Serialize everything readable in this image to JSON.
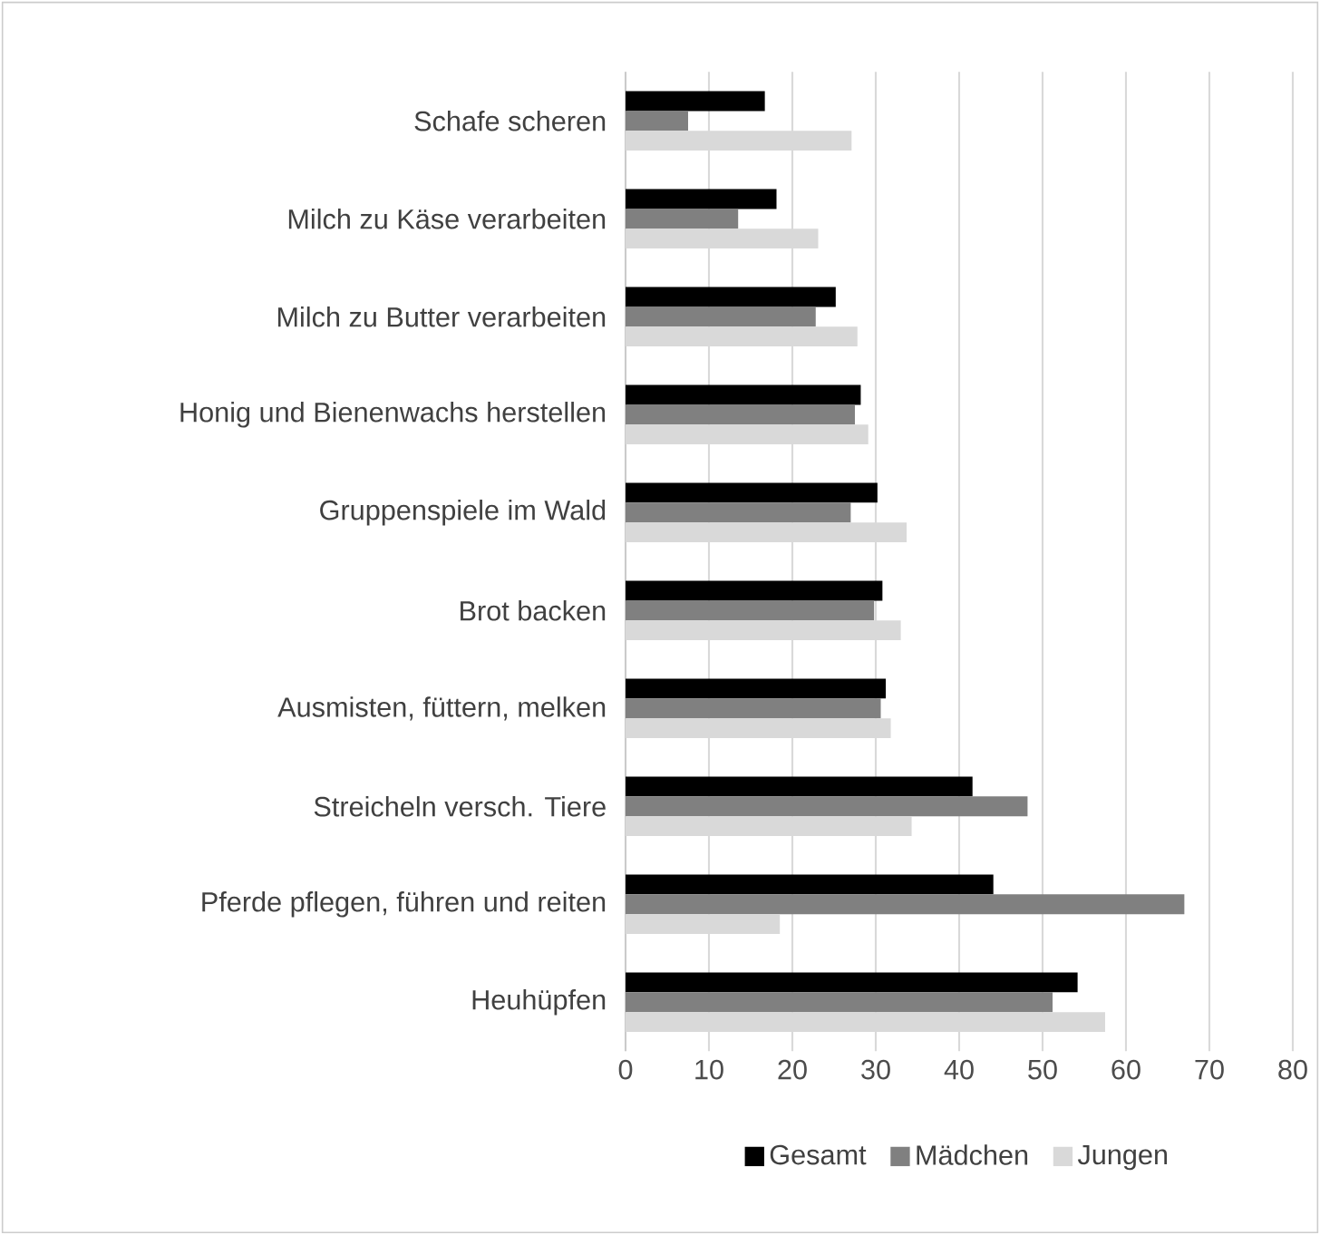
{
  "chart_data": {
    "type": "bar",
    "orientation": "horizontal",
    "categories": [
      "Schafe scheren",
      "Milch zu Käse verarbeiten",
      "Milch zu Butter verarbeiten",
      "Honig und Bienenwachs herstellen",
      "Gruppenspiele im Wald",
      "Brot backen",
      "Ausmisten, füttern, melken",
      "Streicheln versch. Tiere",
      "Pferde pflegen, führen und reiten",
      "Heuhüpfen"
    ],
    "series": [
      {
        "name": "Gesamt",
        "color": "#000000",
        "values": [
          16.7,
          18.1,
          25.2,
          28.2,
          30.2,
          30.8,
          31.2,
          41.6,
          44.1,
          54.2
        ]
      },
      {
        "name": "Mädchen",
        "color": "#808080",
        "values": [
          7.5,
          13.5,
          22.8,
          27.5,
          27.0,
          29.8,
          30.6,
          48.2,
          67.0,
          51.2
        ]
      },
      {
        "name": "Jungen",
        "color": "#d9d9d9",
        "values": [
          27.1,
          23.1,
          27.8,
          29.1,
          33.7,
          33.0,
          31.8,
          34.3,
          18.5,
          57.5
        ]
      }
    ],
    "xlim": [
      0,
      80
    ],
    "xticks": [
      0,
      10,
      20,
      30,
      40,
      50,
      60,
      70,
      80
    ],
    "grid": "x",
    "legend": "bottom"
  }
}
